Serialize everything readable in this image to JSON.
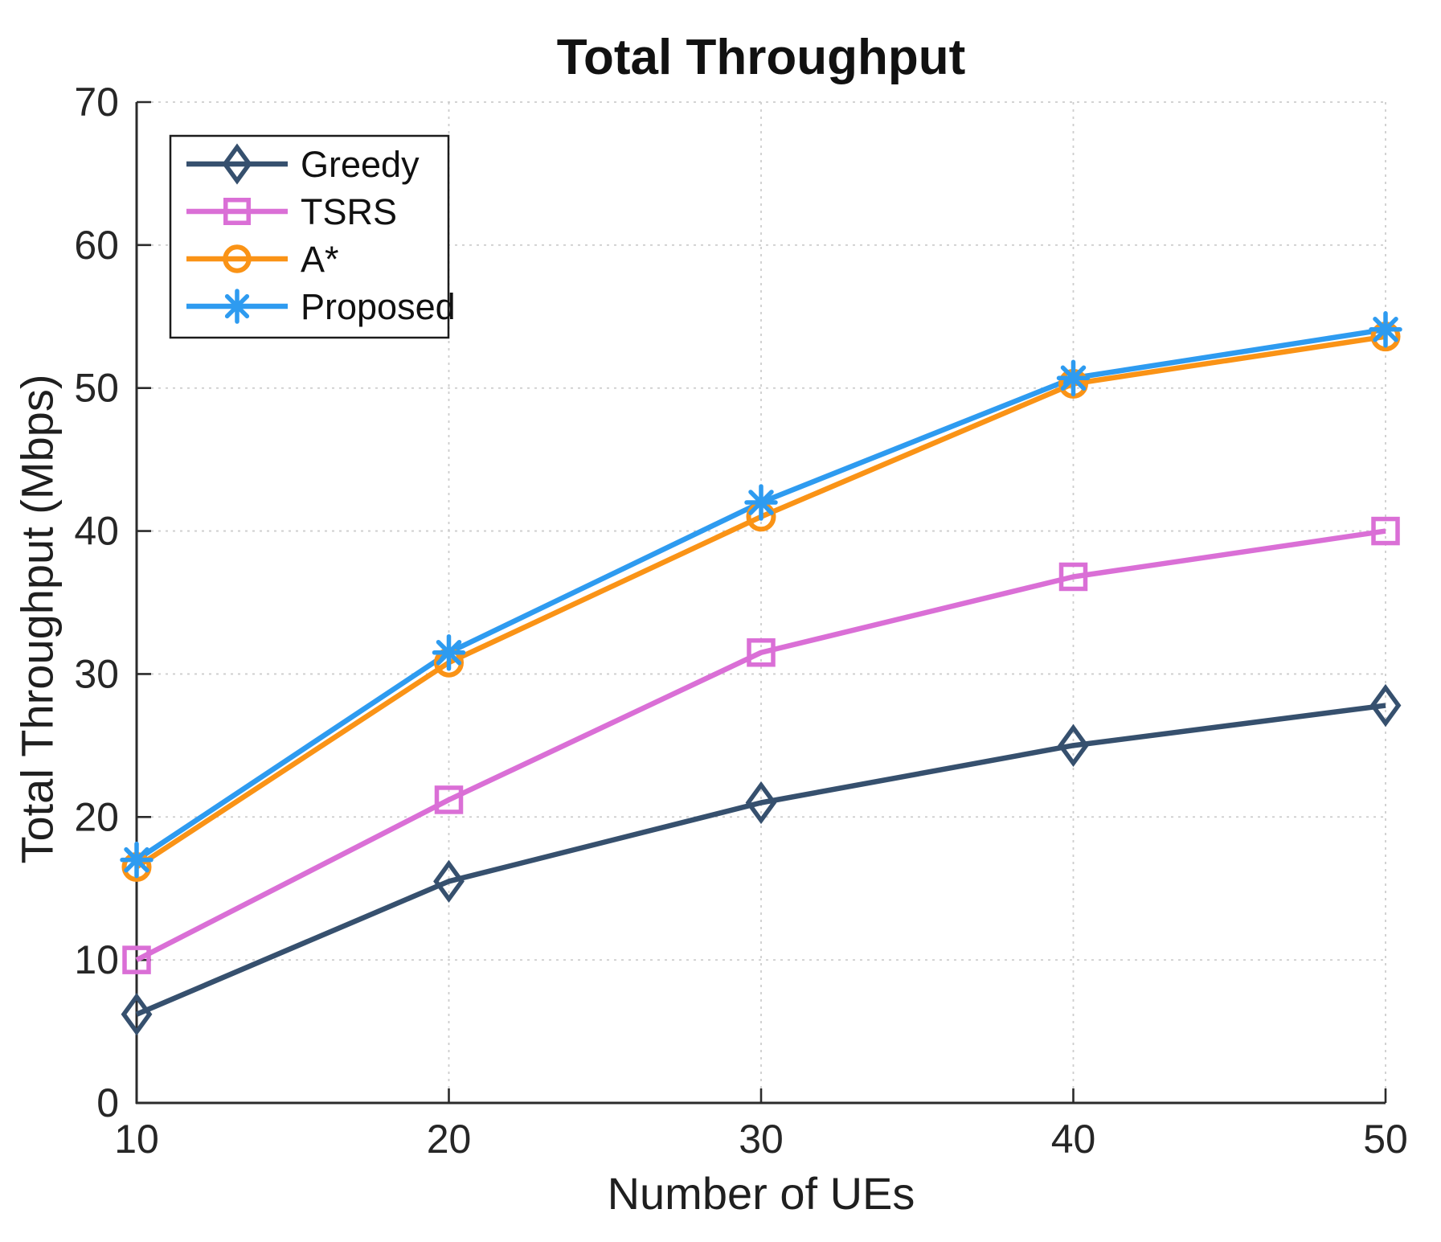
{
  "chart_data": {
    "type": "line",
    "title": "Total Throughput",
    "xlabel": "Number of UEs",
    "ylabel": "Total Throughput (Mbps)",
    "x": [
      10,
      20,
      30,
      40,
      50
    ],
    "xlim": [
      10,
      50
    ],
    "ylim": [
      0,
      70
    ],
    "xticks": [
      10,
      20,
      30,
      40,
      50
    ],
    "yticks": [
      0,
      10,
      20,
      30,
      40,
      50,
      60,
      70
    ],
    "grid": true,
    "legend_position": "top-left",
    "series": [
      {
        "name": "Greedy",
        "color": "#36506e",
        "marker": "diamond",
        "values": [
          6.2,
          15.5,
          21.0,
          25.0,
          27.8
        ]
      },
      {
        "name": "TSRS",
        "color": "#da6fd6",
        "marker": "square",
        "values": [
          10.0,
          21.2,
          31.5,
          36.8,
          40.0
        ]
      },
      {
        "name": "A*",
        "color": "#fa9316",
        "marker": "circle",
        "values": [
          16.5,
          30.8,
          41.0,
          50.3,
          53.6
        ]
      },
      {
        "name": "Proposed",
        "color": "#2e9bf0",
        "marker": "asterisk",
        "values": [
          17.0,
          31.5,
          42.0,
          50.7,
          54.1
        ]
      }
    ],
    "style": {
      "grid_color": "#cdcdcd",
      "spine_color": "#2b2b2b",
      "tick_label_color": "#262626",
      "legend_border_color": "#1c1c1c",
      "line_width": 6.5
    }
  }
}
